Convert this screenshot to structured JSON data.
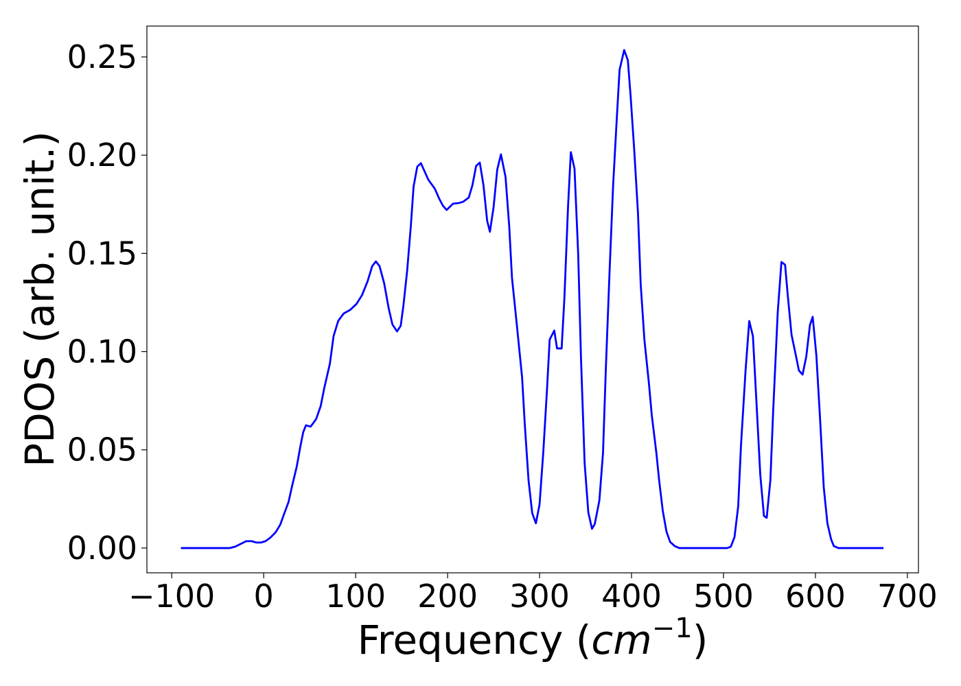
{
  "chart_data": {
    "type": "line",
    "xlabel": [
      "Frequency (",
      "cm",
      "−1",
      ")"
    ],
    "ylabel": "PDOS (arb. unit.)",
    "color": "#0000ff",
    "xlim": [
      -127,
      712
    ],
    "ylim": [
      -0.0126,
      0.2657
    ],
    "xticks": [
      {
        "value": -100,
        "label": "−100"
      },
      0,
      100,
      200,
      300,
      400,
      500,
      600,
      700
    ],
    "yticks": [
      {
        "value": 0,
        "label": "0.00"
      },
      {
        "value": 0.05,
        "label": "0.05"
      },
      {
        "value": 0.1,
        "label": "0.10"
      },
      {
        "value": 0.15,
        "label": "0.15"
      },
      {
        "value": 0.2,
        "label": "0.20"
      },
      {
        "value": 0.25,
        "label": "0.25"
      }
    ],
    "x": [
      -90,
      -37,
      -31,
      -25,
      -19,
      -13,
      -8,
      -3,
      2,
      7,
      13,
      18,
      22,
      27,
      31,
      36,
      40,
      43,
      46,
      51,
      57,
      62,
      66,
      72,
      76,
      81,
      87,
      94,
      101,
      107,
      113,
      118,
      122,
      126,
      131,
      136,
      140,
      145,
      149,
      152,
      156,
      160,
      163,
      167,
      171,
      175,
      179,
      186,
      191,
      195,
      199,
      202,
      206,
      212,
      217,
      223,
      227,
      231,
      235,
      239,
      243,
      246,
      250,
      254,
      258,
      263,
      267,
      270,
      275,
      281,
      284,
      288,
      292,
      296,
      300,
      304,
      308,
      311,
      316,
      319,
      324,
      327,
      331,
      334,
      338,
      342,
      345,
      349,
      353,
      357,
      360,
      365,
      369,
      372,
      376,
      380,
      384,
      387,
      392,
      396,
      399,
      403,
      407,
      410,
      414,
      419,
      422,
      427,
      430,
      434,
      438,
      442,
      447,
      452,
      504,
      508,
      512,
      516,
      519,
      524,
      528,
      532,
      536,
      540,
      544,
      547,
      551,
      554,
      559,
      563,
      567,
      570,
      574,
      579,
      582,
      586,
      590,
      594,
      597,
      601,
      605,
      609,
      613,
      617,
      620,
      625,
      674
    ],
    "values": [
      0,
      0,
      0.0007,
      0.0021,
      0.0035,
      0.0035,
      0.0028,
      0.0028,
      0.0035,
      0.0052,
      0.008,
      0.0119,
      0.0171,
      0.0234,
      0.0318,
      0.0416,
      0.052,
      0.059,
      0.0625,
      0.0618,
      0.0656,
      0.0723,
      0.0817,
      0.0939,
      0.1079,
      0.1156,
      0.1194,
      0.1212,
      0.1243,
      0.1288,
      0.1358,
      0.1435,
      0.1459,
      0.1435,
      0.1348,
      0.1219,
      0.1138,
      0.1103,
      0.1131,
      0.1236,
      0.1411,
      0.1638,
      0.184,
      0.1941,
      0.1959,
      0.1917,
      0.1875,
      0.183,
      0.1777,
      0.1742,
      0.1721,
      0.1735,
      0.1753,
      0.1756,
      0.1763,
      0.1784,
      0.1847,
      0.1945,
      0.1962,
      0.1847,
      0.1666,
      0.161,
      0.1735,
      0.1927,
      0.2004,
      0.1889,
      0.1638,
      0.1376,
      0.1149,
      0.0869,
      0.0625,
      0.0346,
      0.0178,
      0.0126,
      0.0223,
      0.0485,
      0.08,
      0.1061,
      0.1107,
      0.1016,
      0.1016,
      0.1271,
      0.1742,
      0.2015,
      0.1931,
      0.1498,
      0.0974,
      0.0433,
      0.0182,
      0.0098,
      0.0122,
      0.0241,
      0.0485,
      0.0904,
      0.1393,
      0.1847,
      0.2189,
      0.2434,
      0.2535,
      0.2483,
      0.2301,
      0.2022,
      0.1707,
      0.1341,
      0.1061,
      0.0834,
      0.0677,
      0.0485,
      0.0346,
      0.0189,
      0.0084,
      0.0031,
      0.001,
      0,
      0,
      0.0007,
      0.0056,
      0.0213,
      0.052,
      0.0904,
      0.1156,
      0.1079,
      0.073,
      0.0374,
      0.0164,
      0.0154,
      0.0346,
      0.0695,
      0.1201,
      0.1456,
      0.1442,
      0.1281,
      0.1086,
      0.0974,
      0.0904,
      0.0883,
      0.0974,
      0.1135,
      0.1177,
      0.0981,
      0.066,
      0.0311,
      0.0126,
      0.0045,
      0.001,
      0,
      0
    ]
  }
}
